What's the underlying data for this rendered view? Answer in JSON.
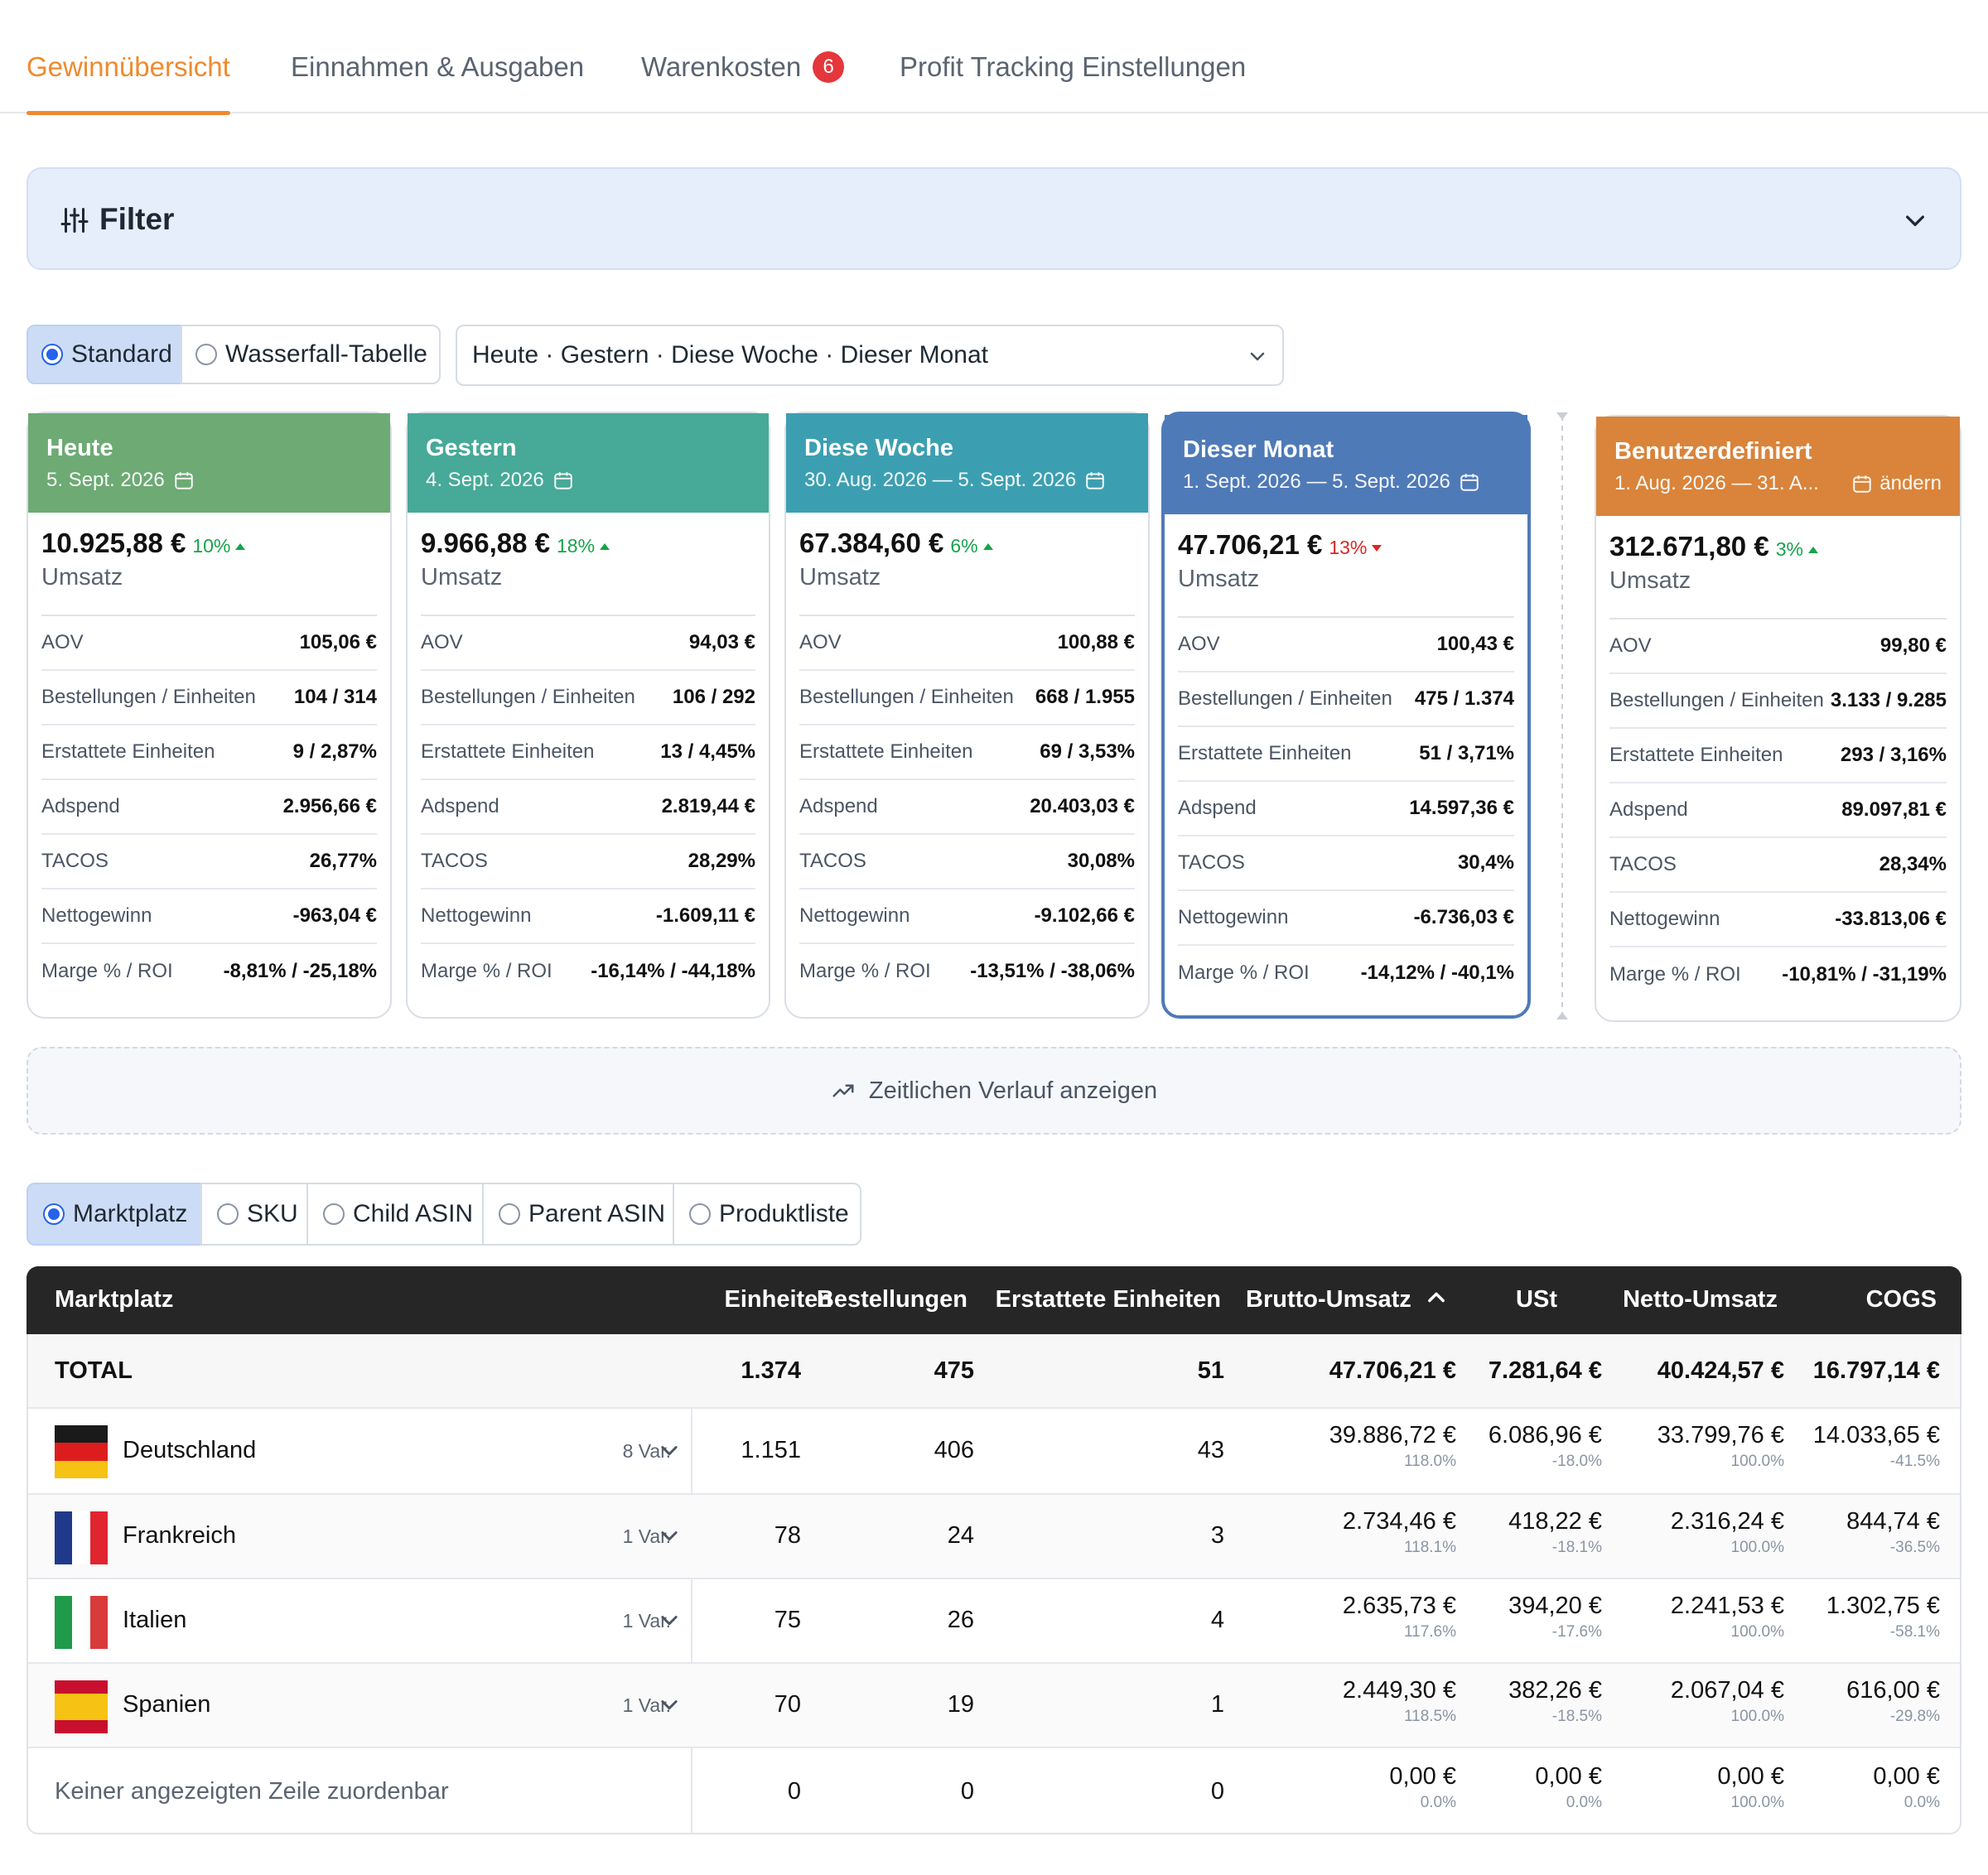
{
  "tabs": [
    {
      "label": "Gewinnübersicht"
    },
    {
      "label": "Einnahmen & Ausgaben"
    },
    {
      "label": "Warenkosten",
      "badge": "6"
    },
    {
      "label": "Profit Tracking Einstellungen"
    }
  ],
  "filter": {
    "label": "Filter"
  },
  "view_modes": [
    "Standard",
    "Wasserfall-Tabelle"
  ],
  "period_select": {
    "value": "Heute · Gestern · Diese Woche · Dieser Monat"
  },
  "cards": [
    {
      "title": "Heute",
      "date": "5. Sept. 2026",
      "color": "#6daa74",
      "revenue": "10.925,88 €",
      "change": "10%",
      "direction": "up",
      "revenue_label": "Umsatz",
      "rows": [
        [
          "AOV",
          "105,06 €"
        ],
        [
          "Bestellungen / Einheiten",
          "104 / 314"
        ],
        [
          "Erstattete Einheiten",
          "9 / 2,87%"
        ],
        [
          "Adspend",
          "2.956,66 €"
        ],
        [
          "TACOS",
          "26,77%"
        ],
        [
          "Nettogewinn",
          "-963,04 €"
        ],
        [
          "Marge % / ROI",
          "-8,81% / -25,18%"
        ]
      ]
    },
    {
      "title": "Gestern",
      "date": "4. Sept. 2026",
      "color": "#47a998",
      "revenue": "9.966,88 €",
      "change": "18%",
      "direction": "up",
      "revenue_label": "Umsatz",
      "rows": [
        [
          "AOV",
          "94,03 €"
        ],
        [
          "Bestellungen / Einheiten",
          "106 / 292"
        ],
        [
          "Erstattete Einheiten",
          "13 / 4,45%"
        ],
        [
          "Adspend",
          "2.819,44 €"
        ],
        [
          "TACOS",
          "28,29%"
        ],
        [
          "Nettogewinn",
          "-1.609,11 €"
        ],
        [
          "Marge % / ROI",
          "-16,14% / -44,18%"
        ]
      ]
    },
    {
      "title": "Diese Woche",
      "date": "30. Aug. 2026 — 5. Sept. 2026",
      "color": "#3c9fb1",
      "revenue": "67.384,60 €",
      "change": "6%",
      "direction": "up",
      "revenue_label": "Umsatz",
      "rows": [
        [
          "AOV",
          "100,88 €"
        ],
        [
          "Bestellungen / Einheiten",
          "668 / 1.955"
        ],
        [
          "Erstattete Einheiten",
          "69 / 3,53%"
        ],
        [
          "Adspend",
          "20.403,03 €"
        ],
        [
          "TACOS",
          "30,08%"
        ],
        [
          "Nettogewinn",
          "-9.102,66 €"
        ],
        [
          "Marge % / ROI",
          "-13,51% / -38,06%"
        ]
      ]
    },
    {
      "title": "Dieser Monat",
      "date": "1. Sept. 2026 — 5. Sept. 2026",
      "color": "#4f7ab8",
      "revenue": "47.706,21 €",
      "change": "13%",
      "direction": "down",
      "revenue_label": "Umsatz",
      "rows": [
        [
          "AOV",
          "100,43 €"
        ],
        [
          "Bestellungen / Einheiten",
          "475 / 1.374"
        ],
        [
          "Erstattete Einheiten",
          "51 / 3,71%"
        ],
        [
          "Adspend",
          "14.597,36 €"
        ],
        [
          "TACOS",
          "30,4%"
        ],
        [
          "Nettogewinn",
          "-6.736,03 €"
        ],
        [
          "Marge % / ROI",
          "-14,12% / -40,1%"
        ]
      ]
    },
    {
      "title": "Benutzerdefiniert",
      "date": "1. Aug. 2026 — 31. A...",
      "edit_label": "ändern",
      "color": "#d9843a",
      "revenue": "312.671,80 €",
      "change": "3%",
      "direction": "up",
      "revenue_label": "Umsatz",
      "rows": [
        [
          "AOV",
          "99,80 €"
        ],
        [
          "Bestellungen / Einheiten",
          "3.133 / 9.285"
        ],
        [
          "Erstattete Einheiten",
          "293 / 3,16%"
        ],
        [
          "Adspend",
          "89.097,81 €"
        ],
        [
          "TACOS",
          "28,34%"
        ],
        [
          "Nettogewinn",
          "-33.813,06 €"
        ],
        [
          "Marge % / ROI",
          "-10,81% / -31,19%"
        ]
      ]
    }
  ],
  "timeline": {
    "label": "Zeitlichen Verlauf anzeigen"
  },
  "group_modes": [
    "Marktplatz",
    "SKU",
    "Child ASIN",
    "Parent ASIN",
    "Produktliste"
  ],
  "table": {
    "headers": [
      "Marktplatz",
      "Einheiten",
      "Bestellungen",
      "Erstattete Einheiten",
      "Brutto-Umsatz",
      "USt",
      "Netto-Umsatz",
      "COGS"
    ],
    "total": {
      "label": "TOTAL",
      "units": "1.374",
      "orders": "475",
      "refunded": "51",
      "gross": "47.706,21 €",
      "vat": "7.281,64 €",
      "net": "40.424,57 €",
      "cogs": "16.797,14 €"
    },
    "rows": [
      {
        "name": "Deutschland",
        "flag": "de",
        "variants": "8 Var.",
        "units": "1.151",
        "orders": "406",
        "refunded": "43",
        "gross": "39.886,72 €",
        "gross_pct": "118.0%",
        "vat": "6.086,96 €",
        "vat_pct": "-18.0%",
        "net": "33.799,76 €",
        "net_pct": "100.0%",
        "cogs": "14.033,65 €",
        "cogs_pct": "-41.5%"
      },
      {
        "name": "Frankreich",
        "flag": "fr",
        "variants": "1 Var.",
        "units": "78",
        "orders": "24",
        "refunded": "3",
        "gross": "2.734,46 €",
        "gross_pct": "118.1%",
        "vat": "418,22 €",
        "vat_pct": "-18.1%",
        "net": "2.316,24 €",
        "net_pct": "100.0%",
        "cogs": "844,74 €",
        "cogs_pct": "-36.5%"
      },
      {
        "name": "Italien",
        "flag": "it",
        "variants": "1 Var.",
        "units": "75",
        "orders": "26",
        "refunded": "4",
        "gross": "2.635,73 €",
        "gross_pct": "117.6%",
        "vat": "394,20 €",
        "vat_pct": "-17.6%",
        "net": "2.241,53 €",
        "net_pct": "100.0%",
        "cogs": "1.302,75 €",
        "cogs_pct": "-58.1%"
      },
      {
        "name": "Spanien",
        "flag": "es",
        "variants": "1 Var.",
        "units": "70",
        "orders": "19",
        "refunded": "1",
        "gross": "2.449,30 €",
        "gross_pct": "118.5%",
        "vat": "382,26 €",
        "vat_pct": "-18.5%",
        "net": "2.067,04 €",
        "net_pct": "100.0%",
        "cogs": "616,00 €",
        "cogs_pct": "-29.8%"
      }
    ],
    "unassigned": {
      "label": "Keiner angezeigten Zeile zuordenbar",
      "units": "0",
      "orders": "0",
      "refunded": "0",
      "gross": "0,00 €",
      "gross_pct": "0.0%",
      "vat": "0,00 €",
      "vat_pct": "0.0%",
      "net": "0,00 €",
      "net_pct": "100.0%",
      "cogs": "0,00 €",
      "cogs_pct": "0.0%"
    }
  }
}
